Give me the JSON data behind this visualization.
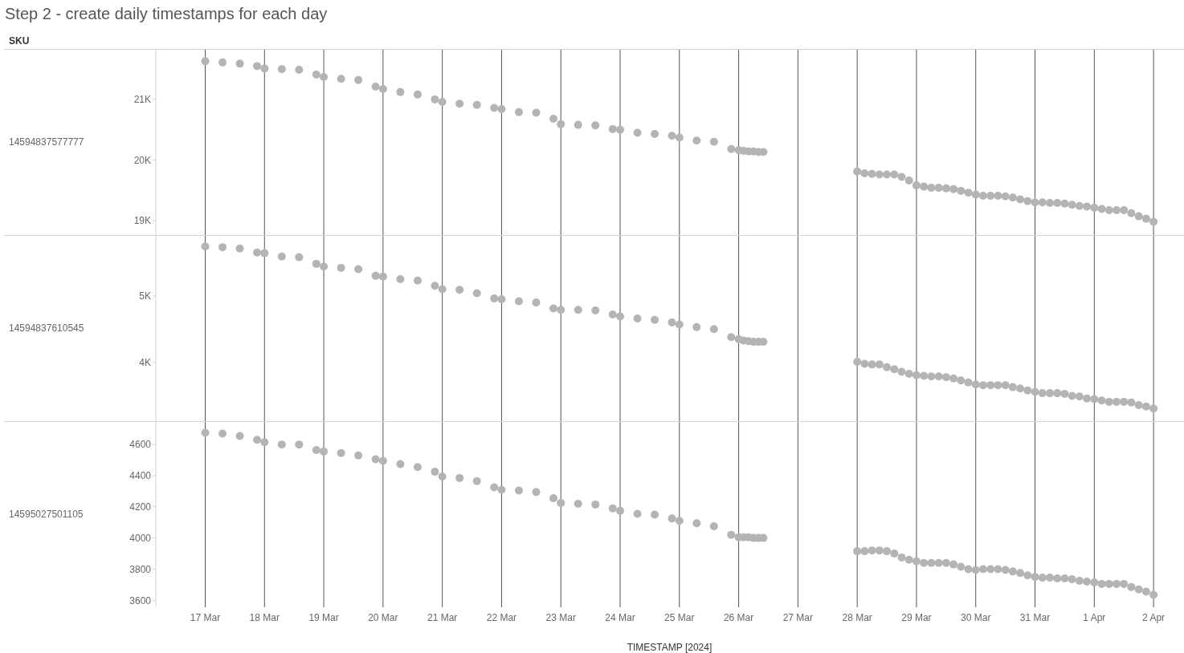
{
  "chart_data": [
    {
      "type": "scatter",
      "title": "Step 2 - create daily timestamps for each day",
      "annotations": [
        "SKU"
      ],
      "ylabel": "14594837577777",
      "color": "#b4b4b4",
      "marker": "circle",
      "grid": "x",
      "tick_labels": "y",
      "x": [
        "2024-03-17T00:00",
        "2024-03-17T07:00",
        "2024-03-17T14:00",
        "2024-03-17T21:00",
        "2024-03-18T00:00",
        "2024-03-18T07:00",
        "2024-03-18T14:00",
        "2024-03-18T21:00",
        "2024-03-19T00:00",
        "2024-03-19T07:00",
        "2024-03-19T14:00",
        "2024-03-19T21:00",
        "2024-03-20T00:00",
        "2024-03-20T07:00",
        "2024-03-20T14:00",
        "2024-03-20T21:00",
        "2024-03-21T00:00",
        "2024-03-21T07:00",
        "2024-03-21T14:00",
        "2024-03-21T21:00",
        "2024-03-22T00:00",
        "2024-03-22T07:00",
        "2024-03-22T14:00",
        "2024-03-22T21:00",
        "2024-03-23T00:00",
        "2024-03-23T07:00",
        "2024-03-23T14:00",
        "2024-03-23T21:00",
        "2024-03-24T00:00",
        "2024-03-24T07:00",
        "2024-03-24T14:00",
        "2024-03-24T21:00",
        "2024-03-25T00:00",
        "2024-03-25T07:00",
        "2024-03-25T14:00",
        "2024-03-25T21:00",
        "2024-03-26T00:00",
        "2024-03-26T02:00",
        "2024-03-26T04:00",
        "2024-03-26T06:00",
        "2024-03-26T08:00",
        "2024-03-26T10:00",
        "2024-03-28T00:00",
        "2024-03-28T03:00",
        "2024-03-28T06:00",
        "2024-03-28T09:00",
        "2024-03-28T12:00",
        "2024-03-28T15:00",
        "2024-03-28T18:00",
        "2024-03-28T21:00",
        "2024-03-29T00:00",
        "2024-03-29T03:00",
        "2024-03-29T06:00",
        "2024-03-29T09:00",
        "2024-03-29T12:00",
        "2024-03-29T15:00",
        "2024-03-29T18:00",
        "2024-03-29T21:00",
        "2024-03-30T00:00",
        "2024-03-30T03:00",
        "2024-03-30T06:00",
        "2024-03-30T09:00",
        "2024-03-30T12:00",
        "2024-03-30T15:00",
        "2024-03-30T18:00",
        "2024-03-30T21:00",
        "2024-03-31T00:00",
        "2024-03-31T03:00",
        "2024-03-31T06:00",
        "2024-03-31T09:00",
        "2024-03-31T12:00",
        "2024-03-31T15:00",
        "2024-03-31T18:00",
        "2024-03-31T21:00",
        "2024-04-01T00:00",
        "2024-04-01T03:00",
        "2024-04-01T06:00",
        "2024-04-01T09:00",
        "2024-04-01T12:00",
        "2024-04-01T15:00",
        "2024-04-01T18:00",
        "2024-04-01T21:00",
        "2024-04-02T00:00"
      ],
      "values": [
        21630,
        21610,
        21590,
        21550,
        21510,
        21500,
        21490,
        21410,
        21370,
        21340,
        21320,
        21210,
        21170,
        21120,
        21080,
        21000,
        20960,
        20930,
        20910,
        20860,
        20840,
        20790,
        20780,
        20680,
        20590,
        20580,
        20570,
        20510,
        20500,
        20450,
        20430,
        20400,
        20370,
        20320,
        20300,
        20180,
        20160,
        20150,
        20140,
        20140,
        20130,
        20130,
        19810,
        19780,
        19770,
        19760,
        19760,
        19760,
        19720,
        19660,
        19580,
        19560,
        19540,
        19540,
        19530,
        19520,
        19490,
        19460,
        19430,
        19410,
        19410,
        19410,
        19400,
        19380,
        19350,
        19320,
        19300,
        19300,
        19290,
        19290,
        19280,
        19260,
        19240,
        19230,
        19210,
        19190,
        19170,
        19170,
        19170,
        19120,
        19070,
        19030,
        18980
      ],
      "xlim": [
        "2024-03-16T04:00",
        "2024-04-02T12:00"
      ],
      "xticks": [
        {
          "value": "2024-03-17",
          "label": null
        },
        {
          "value": "2024-03-18",
          "label": null
        },
        {
          "value": "2024-03-19",
          "label": null
        },
        {
          "value": "2024-03-20",
          "label": null
        },
        {
          "value": "2024-03-21",
          "label": null
        },
        {
          "value": "2024-03-22",
          "label": null
        },
        {
          "value": "2024-03-23",
          "label": null
        },
        {
          "value": "2024-03-24",
          "label": null
        },
        {
          "value": "2024-03-25",
          "label": null
        },
        {
          "value": "2024-03-26",
          "label": null
        },
        {
          "value": "2024-03-27",
          "label": null
        },
        {
          "value": "2024-03-28",
          "label": null
        },
        {
          "value": "2024-03-29",
          "label": null
        },
        {
          "value": "2024-03-30",
          "label": null
        },
        {
          "value": "2024-03-31",
          "label": null
        },
        {
          "value": "2024-04-01",
          "label": null
        },
        {
          "value": "2024-04-02",
          "label": null
        }
      ],
      "ylim": [
        18760,
        21820
      ],
      "yticks": [
        {
          "value": 19000,
          "label": "19K"
        },
        {
          "value": 20000,
          "label": "20K"
        },
        {
          "value": 21000,
          "label": "21K"
        }
      ]
    },
    {
      "type": "scatter",
      "ylabel": "14594837610545",
      "color": "#b4b4b4",
      "marker": "circle",
      "grid": "x",
      "tick_labels": "y",
      "x": [
        "2024-03-17T00:00",
        "2024-03-17T07:00",
        "2024-03-17T14:00",
        "2024-03-17T21:00",
        "2024-03-18T00:00",
        "2024-03-18T07:00",
        "2024-03-18T14:00",
        "2024-03-18T21:00",
        "2024-03-19T00:00",
        "2024-03-19T07:00",
        "2024-03-19T14:00",
        "2024-03-19T21:00",
        "2024-03-20T00:00",
        "2024-03-20T07:00",
        "2024-03-20T14:00",
        "2024-03-20T21:00",
        "2024-03-21T00:00",
        "2024-03-21T07:00",
        "2024-03-21T14:00",
        "2024-03-21T21:00",
        "2024-03-22T00:00",
        "2024-03-22T07:00",
        "2024-03-22T14:00",
        "2024-03-22T21:00",
        "2024-03-23T00:00",
        "2024-03-23T07:00",
        "2024-03-23T14:00",
        "2024-03-23T21:00",
        "2024-03-24T00:00",
        "2024-03-24T07:00",
        "2024-03-24T14:00",
        "2024-03-24T21:00",
        "2024-03-25T00:00",
        "2024-03-25T07:00",
        "2024-03-25T14:00",
        "2024-03-25T21:00",
        "2024-03-26T00:00",
        "2024-03-26T02:00",
        "2024-03-26T04:00",
        "2024-03-26T06:00",
        "2024-03-26T08:00",
        "2024-03-26T10:00",
        "2024-03-28T00:00",
        "2024-03-28T03:00",
        "2024-03-28T06:00",
        "2024-03-28T09:00",
        "2024-03-28T12:00",
        "2024-03-28T15:00",
        "2024-03-28T18:00",
        "2024-03-28T21:00",
        "2024-03-29T00:00",
        "2024-03-29T03:00",
        "2024-03-29T06:00",
        "2024-03-29T09:00",
        "2024-03-29T12:00",
        "2024-03-29T15:00",
        "2024-03-29T18:00",
        "2024-03-29T21:00",
        "2024-03-30T00:00",
        "2024-03-30T03:00",
        "2024-03-30T06:00",
        "2024-03-30T09:00",
        "2024-03-30T12:00",
        "2024-03-30T15:00",
        "2024-03-30T18:00",
        "2024-03-30T21:00",
        "2024-03-31T00:00",
        "2024-03-31T03:00",
        "2024-03-31T06:00",
        "2024-03-31T09:00",
        "2024-03-31T12:00",
        "2024-03-31T15:00",
        "2024-03-31T18:00",
        "2024-03-31T21:00",
        "2024-04-01T00:00",
        "2024-04-01T03:00",
        "2024-04-01T06:00",
        "2024-04-01T09:00",
        "2024-04-01T12:00",
        "2024-04-01T15:00",
        "2024-04-01T18:00",
        "2024-04-01T21:00",
        "2024-04-02T00:00"
      ],
      "values": [
        5740,
        5730,
        5710,
        5650,
        5640,
        5590,
        5580,
        5480,
        5440,
        5420,
        5400,
        5300,
        5290,
        5250,
        5230,
        5150,
        5100,
        5090,
        5040,
        4960,
        4950,
        4920,
        4900,
        4810,
        4790,
        4790,
        4780,
        4720,
        4690,
        4660,
        4640,
        4600,
        4570,
        4530,
        4500,
        4380,
        4350,
        4330,
        4320,
        4310,
        4310,
        4310,
        4010,
        3980,
        3970,
        3970,
        3930,
        3900,
        3860,
        3830,
        3810,
        3800,
        3790,
        3790,
        3780,
        3760,
        3730,
        3700,
        3670,
        3660,
        3660,
        3660,
        3660,
        3630,
        3610,
        3580,
        3560,
        3540,
        3540,
        3540,
        3530,
        3500,
        3490,
        3460,
        3450,
        3430,
        3410,
        3410,
        3410,
        3400,
        3360,
        3340,
        3310
      ],
      "xlim": [
        "2024-03-16T04:00",
        "2024-04-02T12:00"
      ],
      "xticks": [
        {
          "value": "2024-03-17",
          "label": null
        },
        {
          "value": "2024-03-18",
          "label": null
        },
        {
          "value": "2024-03-19",
          "label": null
        },
        {
          "value": "2024-03-20",
          "label": null
        },
        {
          "value": "2024-03-21",
          "label": null
        },
        {
          "value": "2024-03-22",
          "label": null
        },
        {
          "value": "2024-03-23",
          "label": null
        },
        {
          "value": "2024-03-24",
          "label": null
        },
        {
          "value": "2024-03-25",
          "label": null
        },
        {
          "value": "2024-03-26",
          "label": null
        },
        {
          "value": "2024-03-27",
          "label": null
        },
        {
          "value": "2024-03-28",
          "label": null
        },
        {
          "value": "2024-03-29",
          "label": null
        },
        {
          "value": "2024-03-30",
          "label": null
        },
        {
          "value": "2024-03-31",
          "label": null
        },
        {
          "value": "2024-04-01",
          "label": null
        },
        {
          "value": "2024-04-02",
          "label": null
        }
      ],
      "ylim": [
        3120,
        5900
      ],
      "yticks": [
        {
          "value": 4000,
          "label": "4K"
        },
        {
          "value": 5000,
          "label": "5K"
        }
      ]
    },
    {
      "type": "scatter",
      "ylabel": "14595027501105",
      "xlabel": "TIMESTAMP [2024]",
      "color": "#b4b4b4",
      "marker": "circle",
      "grid": "x",
      "x": [
        "2024-03-17T00:00",
        "2024-03-17T07:00",
        "2024-03-17T14:00",
        "2024-03-17T21:00",
        "2024-03-18T00:00",
        "2024-03-18T07:00",
        "2024-03-18T14:00",
        "2024-03-18T21:00",
        "2024-03-19T00:00",
        "2024-03-19T07:00",
        "2024-03-19T14:00",
        "2024-03-19T21:00",
        "2024-03-20T00:00",
        "2024-03-20T07:00",
        "2024-03-20T14:00",
        "2024-03-20T21:00",
        "2024-03-21T00:00",
        "2024-03-21T07:00",
        "2024-03-21T14:00",
        "2024-03-21T21:00",
        "2024-03-22T00:00",
        "2024-03-22T07:00",
        "2024-03-22T14:00",
        "2024-03-22T21:00",
        "2024-03-23T00:00",
        "2024-03-23T07:00",
        "2024-03-23T14:00",
        "2024-03-23T21:00",
        "2024-03-24T00:00",
        "2024-03-24T07:00",
        "2024-03-24T14:00",
        "2024-03-24T21:00",
        "2024-03-25T00:00",
        "2024-03-25T07:00",
        "2024-03-25T14:00",
        "2024-03-25T21:00",
        "2024-03-26T00:00",
        "2024-03-26T02:00",
        "2024-03-26T04:00",
        "2024-03-26T06:00",
        "2024-03-26T08:00",
        "2024-03-26T10:00",
        "2024-03-28T00:00",
        "2024-03-28T03:00",
        "2024-03-28T06:00",
        "2024-03-28T09:00",
        "2024-03-28T12:00",
        "2024-03-28T15:00",
        "2024-03-28T18:00",
        "2024-03-28T21:00",
        "2024-03-29T00:00",
        "2024-03-29T03:00",
        "2024-03-29T06:00",
        "2024-03-29T09:00",
        "2024-03-29T12:00",
        "2024-03-29T15:00",
        "2024-03-29T18:00",
        "2024-03-29T21:00",
        "2024-03-30T00:00",
        "2024-03-30T03:00",
        "2024-03-30T06:00",
        "2024-03-30T09:00",
        "2024-03-30T12:00",
        "2024-03-30T15:00",
        "2024-03-30T18:00",
        "2024-03-30T21:00",
        "2024-03-31T00:00",
        "2024-03-31T03:00",
        "2024-03-31T06:00",
        "2024-03-31T09:00",
        "2024-03-31T12:00",
        "2024-03-31T15:00",
        "2024-03-31T18:00",
        "2024-03-31T21:00",
        "2024-04-01T00:00",
        "2024-04-01T03:00",
        "2024-04-01T06:00",
        "2024-04-01T09:00",
        "2024-04-01T12:00",
        "2024-04-01T15:00",
        "2024-04-01T18:00",
        "2024-04-01T21:00",
        "2024-04-02T00:00"
      ],
      "values": [
        4675,
        4670,
        4655,
        4630,
        4615,
        4600,
        4600,
        4565,
        4555,
        4545,
        4530,
        4505,
        4495,
        4475,
        4455,
        4425,
        4395,
        4385,
        4365,
        4325,
        4310,
        4305,
        4295,
        4255,
        4225,
        4220,
        4215,
        4190,
        4175,
        4155,
        4150,
        4125,
        4110,
        4095,
        4075,
        4020,
        4005,
        4005,
        4005,
        4000,
        4000,
        4000,
        3915,
        3915,
        3920,
        3920,
        3915,
        3900,
        3875,
        3860,
        3850,
        3840,
        3840,
        3840,
        3840,
        3830,
        3815,
        3800,
        3795,
        3800,
        3800,
        3800,
        3795,
        3785,
        3775,
        3760,
        3750,
        3745,
        3745,
        3740,
        3740,
        3735,
        3725,
        3720,
        3715,
        3705,
        3705,
        3705,
        3705,
        3685,
        3670,
        3655,
        3635
      ],
      "xlim": [
        "2024-03-16T04:00",
        "2024-04-02T12:00"
      ],
      "xticks": [
        {
          "value": "2024-03-17",
          "label": "17 Mar"
        },
        {
          "value": "2024-03-18",
          "label": "18 Mar"
        },
        {
          "value": "2024-03-19",
          "label": "19 Mar"
        },
        {
          "value": "2024-03-20",
          "label": "20 Mar"
        },
        {
          "value": "2024-03-21",
          "label": "21 Mar"
        },
        {
          "value": "2024-03-22",
          "label": "22 Mar"
        },
        {
          "value": "2024-03-23",
          "label": "23 Mar"
        },
        {
          "value": "2024-03-24",
          "label": "24 Mar"
        },
        {
          "value": "2024-03-25",
          "label": "25 Mar"
        },
        {
          "value": "2024-03-26",
          "label": "26 Mar"
        },
        {
          "value": "2024-03-27",
          "label": "27 Mar"
        },
        {
          "value": "2024-03-28",
          "label": "28 Mar"
        },
        {
          "value": "2024-03-29",
          "label": "29 Mar"
        },
        {
          "value": "2024-03-30",
          "label": "30 Mar"
        },
        {
          "value": "2024-03-31",
          "label": "31 Mar"
        },
        {
          "value": "2024-04-01",
          "label": "1 Apr"
        },
        {
          "value": "2024-04-02",
          "label": "2 Apr"
        }
      ],
      "ylim": [
        3555,
        4745
      ],
      "yticks": [
        3600,
        3800,
        4000,
        4200,
        4400,
        4600
      ]
    }
  ]
}
